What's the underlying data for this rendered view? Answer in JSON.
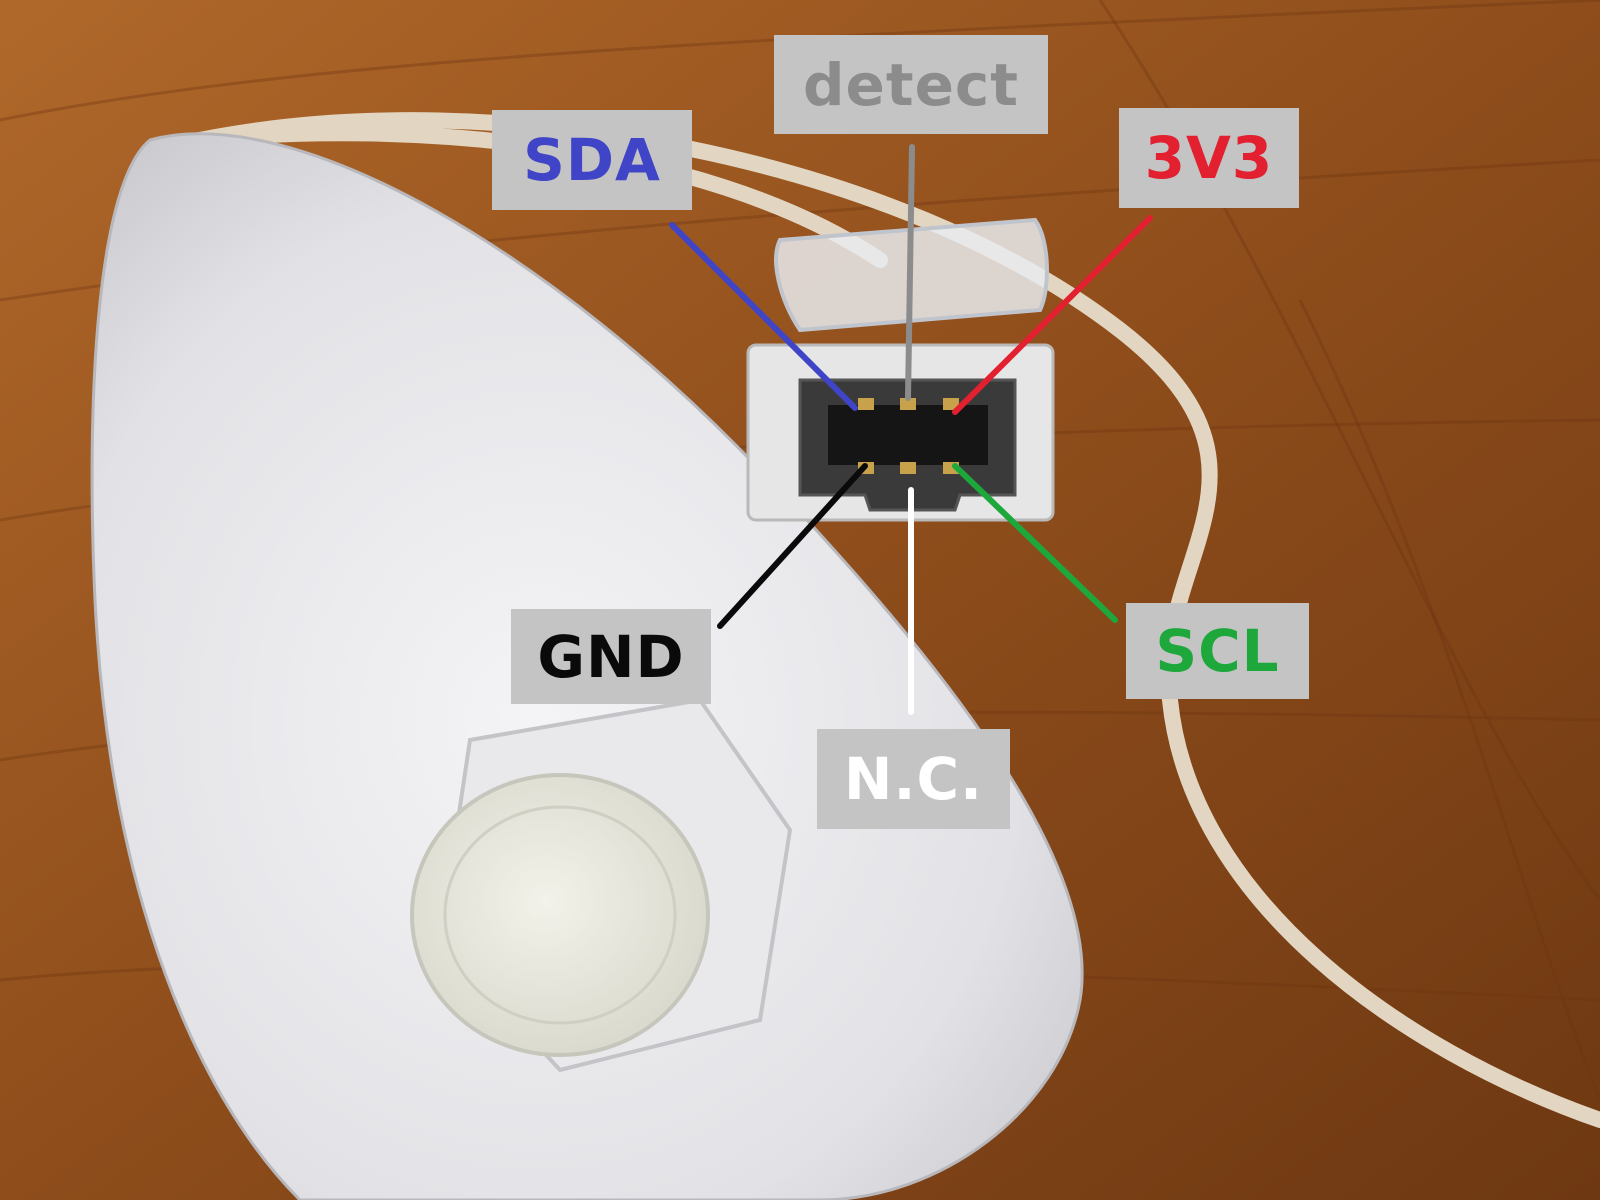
{
  "pins": {
    "detect": {
      "label": "detect",
      "color": "#8c8c8c"
    },
    "sda": {
      "label": "SDA",
      "color": "#3f45c6"
    },
    "v33": {
      "label": "3V3",
      "color": "#e3202f"
    },
    "gnd": {
      "label": "GND",
      "color": "#0a0a0a"
    },
    "scl": {
      "label": "SCL",
      "color": "#1ea83c"
    },
    "nc": {
      "label": "N.C.",
      "color": "#ffffff"
    }
  },
  "colors": {
    "label_background": "#c4c4c4",
    "table_wood": "#9a561f",
    "controller_white": "#e6e6e6"
  }
}
